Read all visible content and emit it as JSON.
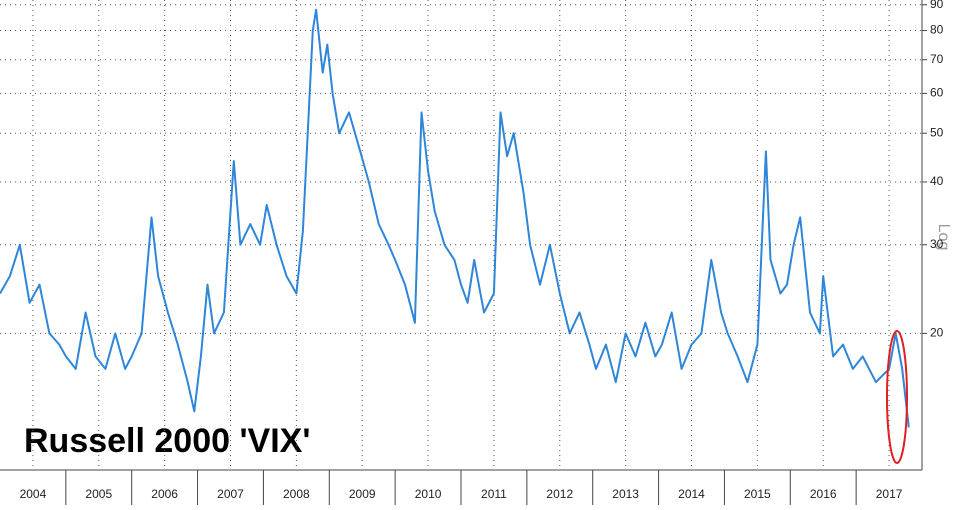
{
  "chart_data": {
    "type": "line",
    "title": "Russell 2000 'VIX'",
    "y_axis_label": "Log",
    "yscale": "log",
    "grid": true,
    "color": "#2f86d9",
    "x": [
      2004.0,
      2004.15,
      2004.3,
      2004.45,
      2004.6,
      2004.75,
      2004.9,
      2005.0,
      2005.15,
      2005.3,
      2005.45,
      2005.6,
      2005.75,
      2005.9,
      2006.0,
      2006.15,
      2006.3,
      2006.4,
      2006.55,
      2006.7,
      2006.85,
      2006.95,
      2007.05,
      2007.15,
      2007.25,
      2007.4,
      2007.55,
      2007.65,
      2007.8,
      2007.95,
      2008.05,
      2008.2,
      2008.35,
      2008.5,
      2008.6,
      2008.75,
      2008.8,
      2008.9,
      2008.97,
      2009.05,
      2009.15,
      2009.3,
      2009.45,
      2009.6,
      2009.75,
      2009.9,
      2010.0,
      2010.15,
      2010.3,
      2010.4,
      2010.5,
      2010.6,
      2010.75,
      2010.9,
      2011.0,
      2011.1,
      2011.2,
      2011.35,
      2011.5,
      2011.6,
      2011.7,
      2011.8,
      2011.95,
      2012.05,
      2012.2,
      2012.35,
      2012.5,
      2012.65,
      2012.8,
      2012.95,
      2013.05,
      2013.2,
      2013.35,
      2013.5,
      2013.65,
      2013.8,
      2013.95,
      2014.05,
      2014.2,
      2014.35,
      2014.5,
      2014.65,
      2014.8,
      2014.95,
      2015.05,
      2015.2,
      2015.35,
      2015.5,
      2015.63,
      2015.7,
      2015.85,
      2015.95,
      2016.05,
      2016.15,
      2016.3,
      2016.45,
      2016.5,
      2016.65,
      2016.8,
      2016.95,
      2017.1,
      2017.3,
      2017.5,
      2017.6,
      2017.7,
      2017.8
    ],
    "values": [
      24,
      26,
      30,
      23,
      25,
      20,
      19,
      18,
      17,
      22,
      18,
      17,
      20,
      17,
      18,
      20,
      34,
      26,
      22,
      19,
      16,
      14,
      18,
      25,
      20,
      22,
      44,
      30,
      33,
      30,
      36,
      30,
      26,
      24,
      32,
      80,
      88,
      66,
      75,
      60,
      50,
      55,
      47,
      40,
      33,
      30,
      28,
      25,
      21,
      55,
      42,
      35,
      30,
      28,
      25,
      23,
      28,
      22,
      24,
      55,
      45,
      50,
      38,
      30,
      25,
      30,
      24,
      20,
      22,
      19,
      17,
      19,
      16,
      20,
      18,
      21,
      18,
      19,
      22,
      17,
      19,
      20,
      28,
      22,
      20,
      18,
      16,
      19,
      46,
      28,
      24,
      25,
      30,
      34,
      22,
      20,
      26,
      18,
      19,
      17,
      18,
      16,
      17,
      20,
      17,
      13
    ],
    "xlim": [
      2004,
      2018
    ],
    "xticks": [
      {
        "value": 2004.5,
        "label": "2004"
      },
      {
        "value": 2005.5,
        "label": "2005"
      },
      {
        "value": 2006.5,
        "label": "2006"
      },
      {
        "value": 2007.5,
        "label": "2007"
      },
      {
        "value": 2008.5,
        "label": "2008"
      },
      {
        "value": 2009.5,
        "label": "2009"
      },
      {
        "value": 2010.5,
        "label": "2010"
      },
      {
        "value": 2011.5,
        "label": "2011"
      },
      {
        "value": 2012.5,
        "label": "2012"
      },
      {
        "value": 2013.5,
        "label": "2013"
      },
      {
        "value": 2014.5,
        "label": "2014"
      },
      {
        "value": 2015.5,
        "label": "2015"
      },
      {
        "value": 2016.5,
        "label": "2016"
      },
      {
        "value": 2017.5,
        "label": "2017"
      }
    ],
    "ylim": [
      10.7,
      92
    ],
    "yticks": [
      20,
      30,
      40,
      50,
      60,
      70,
      80,
      90
    ]
  }
}
